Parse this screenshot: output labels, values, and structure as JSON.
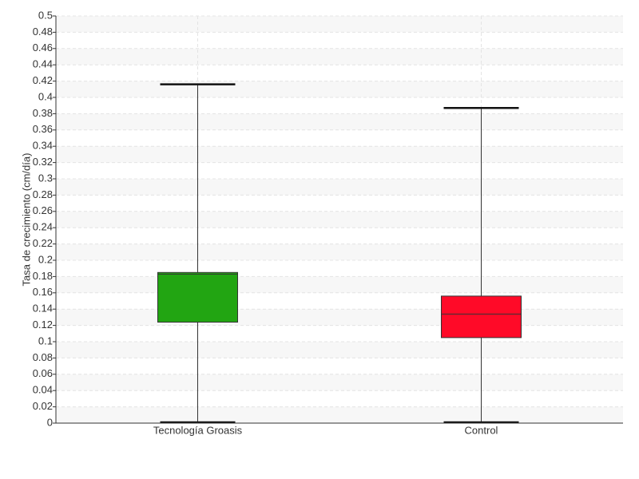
{
  "chart_data": {
    "type": "box",
    "y_label": "Tasa de crecimiento (cm/día)",
    "categories": [
      "Tecnología Groasis",
      "Control"
    ],
    "colors": [
      "#22a512",
      "#ff0a28"
    ],
    "min": [
      0,
      0
    ],
    "q1": [
      0.124,
      0.105
    ],
    "median": [
      0.183,
      0.134
    ],
    "q3": [
      0.185,
      0.156
    ],
    "max": [
      0.416,
      0.387
    ],
    "ylim": [
      0,
      0.5
    ],
    "yticks": [
      0,
      0.02,
      0.04,
      0.06,
      0.08,
      0.1,
      0.12,
      0.14,
      0.16,
      0.18,
      0.2,
      0.22,
      0.24,
      0.26,
      0.28,
      0.3,
      0.32,
      0.34,
      0.36,
      0.38,
      0.4,
      0.42,
      0.44,
      0.46,
      0.48,
      0.5
    ],
    "grid": true
  }
}
